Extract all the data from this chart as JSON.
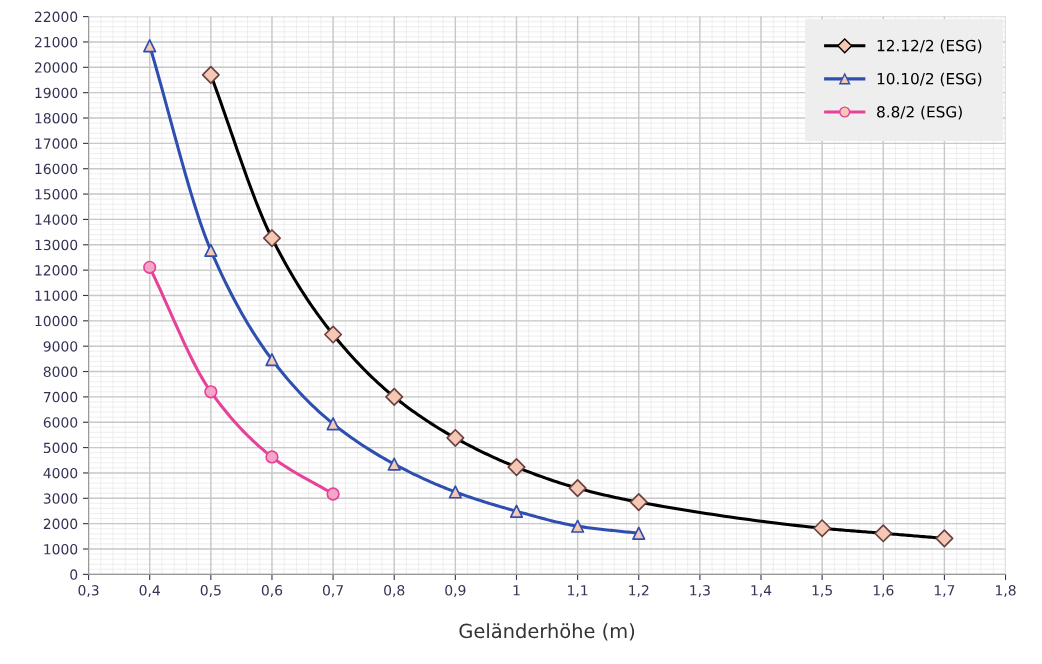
{
  "chart_data": {
    "type": "line",
    "xlabel": "Geländerhöhe (m)",
    "series": [
      {
        "name": "12.12/2 (ESG)",
        "color": "#000000",
        "marker": "diamond",
        "x": [
          0.5,
          0.6,
          0.7,
          0.8,
          0.9,
          1.0,
          1.1,
          1.2,
          1.5,
          1.6,
          1.7
        ],
        "values": [
          19700,
          13260,
          9460,
          7000,
          5380,
          4230,
          3400,
          2850,
          1820,
          1620,
          1420
        ]
      },
      {
        "name": "10.10/2 (ESG)",
        "color": "#2e4fb0",
        "marker": "triangle",
        "x": [
          0.4,
          0.5,
          0.6,
          0.7,
          0.8,
          0.9,
          1.0,
          1.1,
          1.2
        ],
        "values": [
          20850,
          12780,
          8470,
          5940,
          4350,
          3250,
          2490,
          1900,
          1620
        ]
      },
      {
        "name": "8.8/2 (ESG)",
        "color": "#e8419a",
        "marker": "circle",
        "x": [
          0.4,
          0.5,
          0.6,
          0.7
        ],
        "values": [
          12110,
          7200,
          4630,
          3170
        ]
      }
    ],
    "xlim": [
      0.3,
      1.8
    ],
    "xticks": [
      {
        "value": 0.3,
        "label": "0,3"
      },
      {
        "value": 0.4,
        "label": "0,4"
      },
      {
        "value": 0.5,
        "label": "0,5"
      },
      {
        "value": 0.6,
        "label": "0,6"
      },
      {
        "value": 0.7,
        "label": "0,7"
      },
      {
        "value": 0.8,
        "label": "0,8"
      },
      {
        "value": 0.9,
        "label": "0,9"
      },
      1,
      {
        "value": 1.1,
        "label": "1,1"
      },
      {
        "value": 1.2,
        "label": "1,2"
      },
      {
        "value": 1.3,
        "label": "1,3"
      },
      {
        "value": 1.4,
        "label": "1,4"
      },
      {
        "value": 1.5,
        "label": "1,5"
      },
      {
        "value": 1.6,
        "label": "1,6"
      },
      {
        "value": 1.7,
        "label": "1,7"
      },
      {
        "value": 1.8,
        "label": "1,8"
      }
    ],
    "ylim": [
      0,
      22000
    ],
    "yticks": [
      0,
      1000,
      2000,
      3000,
      4000,
      5000,
      6000,
      7000,
      8000,
      9000,
      10000,
      11000,
      12000,
      13000,
      14000,
      15000,
      16000,
      17000,
      18000,
      19000,
      20000,
      21000,
      22000
    ],
    "grid": true,
    "legend": "top right",
    "line_style": "solid"
  }
}
